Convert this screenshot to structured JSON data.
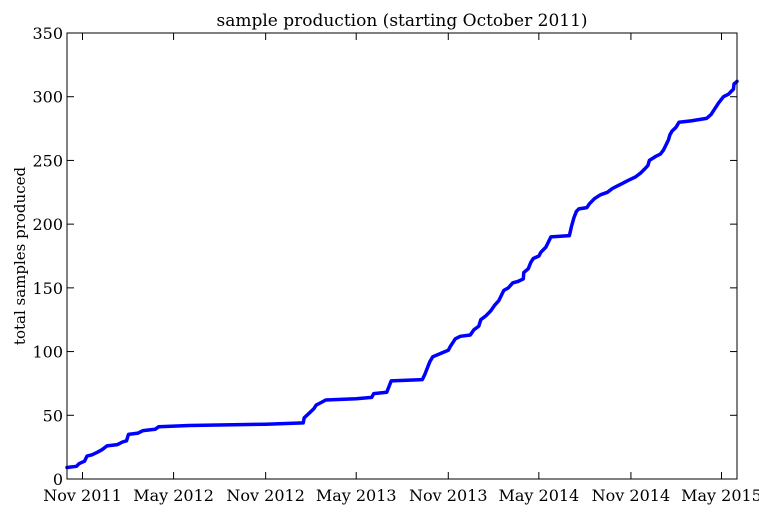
{
  "chart_data": {
    "type": "line",
    "title": "sample production (starting October 2011)",
    "xlabel": "",
    "ylabel": "total samples produced",
    "x_axis_type": "date",
    "xlim": [
      "2011-10-01",
      "2015-06-01"
    ],
    "ylim": [
      0,
      350
    ],
    "grid": false,
    "legend": false,
    "x_ticks": [
      {
        "value": "2011-11-01",
        "label": "Nov 2011"
      },
      {
        "value": "2012-05-01",
        "label": "May 2012"
      },
      {
        "value": "2012-11-01",
        "label": "Nov 2012"
      },
      {
        "value": "2013-05-01",
        "label": "May 2013"
      },
      {
        "value": "2013-11-01",
        "label": "Nov 2013"
      },
      {
        "value": "2014-05-01",
        "label": "May 2014"
      },
      {
        "value": "2014-11-01",
        "label": "Nov 2014"
      },
      {
        "value": "2015-05-01",
        "label": "May 2015"
      }
    ],
    "y_ticks": [
      0,
      50,
      100,
      150,
      200,
      250,
      300,
      350
    ],
    "series": [
      {
        "name": "",
        "color": "#0000ff",
        "points": [
          [
            "2011-10-01",
            9
          ],
          [
            "2011-10-20",
            10
          ],
          [
            "2011-10-25",
            12
          ],
          [
            "2011-11-05",
            14
          ],
          [
            "2011-11-10",
            18
          ],
          [
            "2011-11-20",
            19
          ],
          [
            "2011-12-01",
            21
          ],
          [
            "2011-12-10",
            23
          ],
          [
            "2011-12-20",
            26
          ],
          [
            "2012-01-10",
            27
          ],
          [
            "2012-01-20",
            29
          ],
          [
            "2012-01-28",
            30
          ],
          [
            "2012-02-01",
            35
          ],
          [
            "2012-02-20",
            36
          ],
          [
            "2012-03-01",
            38
          ],
          [
            "2012-03-25",
            39
          ],
          [
            "2012-04-01",
            41
          ],
          [
            "2012-06-01",
            42
          ],
          [
            "2012-11-01",
            43
          ],
          [
            "2013-01-15",
            44
          ],
          [
            "2013-01-17",
            48
          ],
          [
            "2013-01-28",
            52
          ],
          [
            "2013-02-05",
            55
          ],
          [
            "2013-02-10",
            58
          ],
          [
            "2013-02-20",
            60
          ],
          [
            "2013-03-01",
            62
          ],
          [
            "2013-05-01",
            63
          ],
          [
            "2013-06-01",
            64
          ],
          [
            "2013-06-05",
            67
          ],
          [
            "2013-07-01",
            68
          ],
          [
            "2013-07-05",
            72
          ],
          [
            "2013-07-10",
            77
          ],
          [
            "2013-09-10",
            78
          ],
          [
            "2013-09-15",
            82
          ],
          [
            "2013-09-20",
            87
          ],
          [
            "2013-09-25",
            92
          ],
          [
            "2013-10-01",
            96
          ],
          [
            "2013-10-20",
            99
          ],
          [
            "2013-11-01",
            101
          ],
          [
            "2013-11-05",
            104
          ],
          [
            "2013-11-10",
            107
          ],
          [
            "2013-11-15",
            110
          ],
          [
            "2013-11-25",
            112
          ],
          [
            "2013-12-15",
            113
          ],
          [
            "2013-12-22",
            117
          ],
          [
            "2014-01-01",
            120
          ],
          [
            "2014-01-05",
            125
          ],
          [
            "2014-01-15",
            128
          ],
          [
            "2014-01-25",
            132
          ],
          [
            "2014-02-01",
            136
          ],
          [
            "2014-02-10",
            140
          ],
          [
            "2014-02-15",
            144
          ],
          [
            "2014-02-20",
            148
          ],
          [
            "2014-03-01",
            150
          ],
          [
            "2014-03-10",
            154
          ],
          [
            "2014-03-20",
            155
          ],
          [
            "2014-03-31",
            157
          ],
          [
            "2014-04-01",
            162
          ],
          [
            "2014-04-10",
            165
          ],
          [
            "2014-04-15",
            170
          ],
          [
            "2014-04-20",
            173
          ],
          [
            "2014-05-01",
            175
          ],
          [
            "2014-05-05",
            178
          ],
          [
            "2014-05-15",
            182
          ],
          [
            "2014-05-20",
            186
          ],
          [
            "2014-05-25",
            190
          ],
          [
            "2014-07-01",
            191
          ],
          [
            "2014-07-05",
            198
          ],
          [
            "2014-07-10",
            205
          ],
          [
            "2014-07-15",
            210
          ],
          [
            "2014-07-20",
            212
          ],
          [
            "2014-08-05",
            213
          ],
          [
            "2014-08-10",
            216
          ],
          [
            "2014-08-20",
            220
          ],
          [
            "2014-09-01",
            223
          ],
          [
            "2014-09-15",
            225
          ],
          [
            "2014-09-25",
            228
          ],
          [
            "2014-10-05",
            230
          ],
          [
            "2014-10-15",
            232
          ],
          [
            "2014-10-25",
            234
          ],
          [
            "2014-11-10",
            237
          ],
          [
            "2014-11-20",
            240
          ],
          [
            "2014-11-28",
            243
          ],
          [
            "2014-12-05",
            246
          ],
          [
            "2014-12-08",
            250
          ],
          [
            "2014-12-20",
            253
          ],
          [
            "2014-12-30",
            255
          ],
          [
            "2015-01-05",
            258
          ],
          [
            "2015-01-10",
            262
          ],
          [
            "2015-01-15",
            266
          ],
          [
            "2015-01-18",
            270
          ],
          [
            "2015-01-22",
            273
          ],
          [
            "2015-01-30",
            276
          ],
          [
            "2015-02-05",
            280
          ],
          [
            "2015-03-01",
            281
          ],
          [
            "2015-04-01",
            283
          ],
          [
            "2015-04-10",
            286
          ],
          [
            "2015-04-20",
            292
          ],
          [
            "2015-04-25",
            295
          ],
          [
            "2015-05-05",
            300
          ],
          [
            "2015-05-15",
            302
          ],
          [
            "2015-05-20",
            304
          ],
          [
            "2015-05-25",
            306
          ],
          [
            "2015-05-26",
            310
          ],
          [
            "2015-06-01",
            312
          ]
        ]
      }
    ]
  }
}
